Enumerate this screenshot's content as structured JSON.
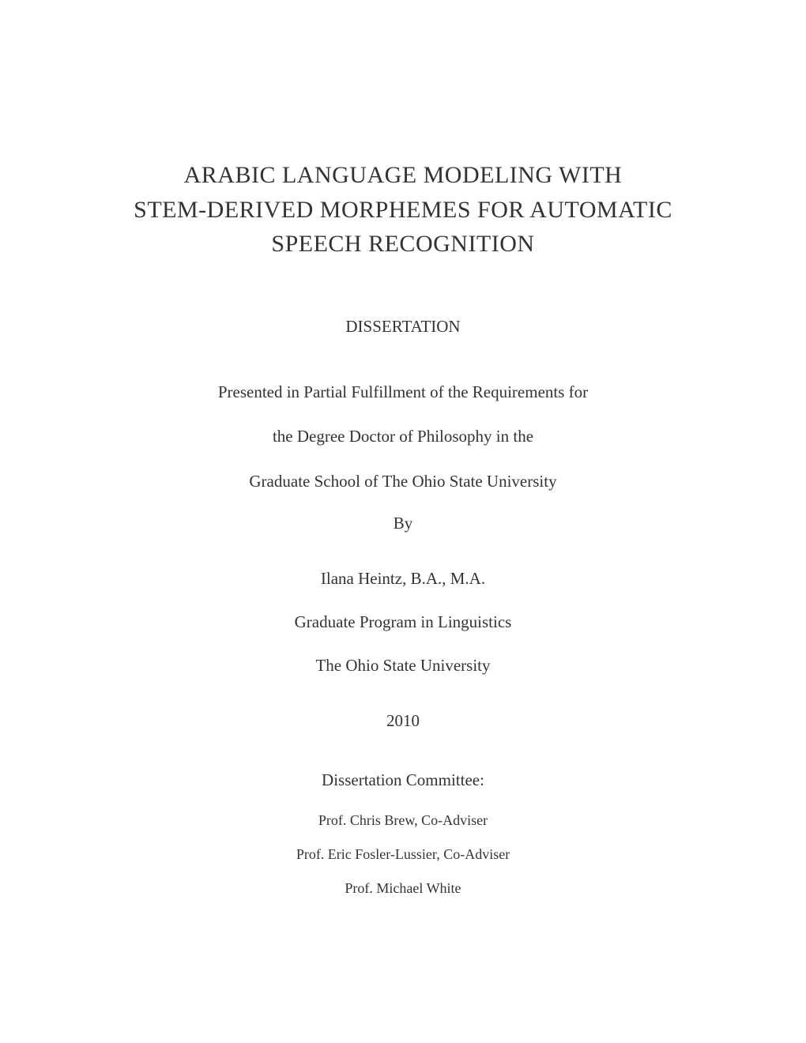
{
  "title": {
    "line1": "ARABIC LANGUAGE MODELING WITH",
    "line2": "STEM-DERIVED MORPHEMES FOR AUTOMATIC",
    "line3": "SPEECH RECOGNITION"
  },
  "dissertation_label": "DISSERTATION",
  "fulfillment": {
    "line1": "Presented in Partial Fulfillment of the Requirements for",
    "line2": "the Degree Doctor of Philosophy in the",
    "line3": "Graduate School of The Ohio State University"
  },
  "by_label": "By",
  "author": "Ilana Heintz, B.A., M.A.",
  "program": "Graduate Program in Linguistics",
  "university": "The Ohio State University",
  "year": "2010",
  "committee": {
    "heading": "Dissertation Committee:",
    "members": [
      "Prof. Chris Brew, Co-Adviser",
      "Prof. Eric Fosler-Lussier, Co-Adviser",
      "Prof. Michael White"
    ]
  },
  "colors": {
    "background": "#ffffff",
    "text": "#333333"
  },
  "typography": {
    "title_fontsize": 30,
    "body_fontsize": 21,
    "committee_fontsize": 18,
    "font_family": "Times New Roman"
  }
}
